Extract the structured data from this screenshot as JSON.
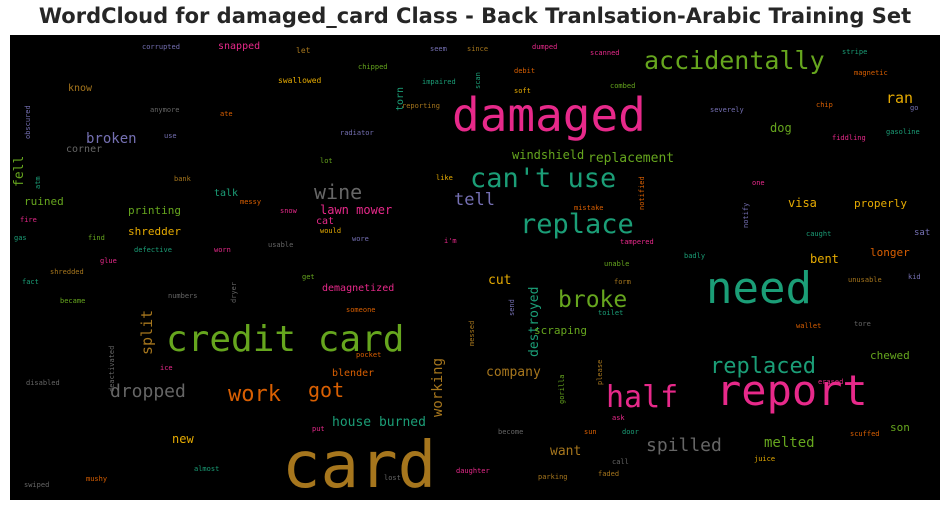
{
  "chart_data": {
    "type": "wordcloud",
    "title": "WordCloud for damaged_card Class - Back Tranlsation-Arabic Training Set",
    "background": "#000000",
    "palette": {
      "pink": "#e7298a",
      "green": "#1b9e77",
      "lime": "#66a61e",
      "gold": "#a6761d",
      "orange": "#d95f02",
      "yellow": "#e6ab02",
      "purple": "#7570b3",
      "gray": "#666666"
    },
    "words": [
      {
        "text": "card",
        "color": "gold",
        "weight": 64
      },
      {
        "text": "need",
        "color": "green",
        "weight": 44
      },
      {
        "text": "damaged",
        "color": "pink",
        "weight": 46
      },
      {
        "text": "report",
        "color": "pink",
        "weight": 42
      },
      {
        "text": "credit card",
        "color": "lime",
        "weight": 36
      },
      {
        "text": "half",
        "color": "pink",
        "weight": 30
      },
      {
        "text": "can't use",
        "color": "green",
        "weight": 27
      },
      {
        "text": "replace",
        "color": "green",
        "weight": 27
      },
      {
        "text": "accidentally",
        "color": "lime",
        "weight": 25
      },
      {
        "text": "broke",
        "color": "lime",
        "weight": 23
      },
      {
        "text": "replaced",
        "color": "green",
        "weight": 22
      },
      {
        "text": "work",
        "color": "orange",
        "weight": 22
      },
      {
        "text": "wine",
        "color": "gray",
        "weight": 20
      },
      {
        "text": "got",
        "color": "orange",
        "weight": 20
      },
      {
        "text": "dropped",
        "color": "gray",
        "weight": 18
      },
      {
        "text": "spilled",
        "color": "gray",
        "weight": 18
      },
      {
        "text": "tell",
        "color": "purple",
        "weight": 17
      },
      {
        "text": "ran",
        "color": "yellow",
        "weight": 15
      },
      {
        "text": "split",
        "color": "gold",
        "weight": 15
      },
      {
        "text": "working",
        "color": "gold",
        "weight": 14
      },
      {
        "text": "melted",
        "color": "lime",
        "weight": 14
      },
      {
        "text": "broken",
        "color": "purple",
        "weight": 14
      },
      {
        "text": "destroyed",
        "color": "green",
        "weight": 13
      },
      {
        "text": "house burned",
        "color": "green",
        "weight": 13
      },
      {
        "text": "cut",
        "color": "yellow",
        "weight": 13
      },
      {
        "text": "fell",
        "color": "lime",
        "weight": 13
      },
      {
        "text": "want",
        "color": "gold",
        "weight": 13
      },
      {
        "text": "company",
        "color": "gold",
        "weight": 13
      },
      {
        "text": "replacement",
        "color": "lime",
        "weight": 13
      },
      {
        "text": "windshield",
        "color": "lime",
        "weight": 12
      },
      {
        "text": "new",
        "color": "yellow",
        "weight": 12
      },
      {
        "text": "visa",
        "color": "yellow",
        "weight": 12
      },
      {
        "text": "dog",
        "color": "lime",
        "weight": 12
      },
      {
        "text": "lawn mower",
        "color": "pink",
        "weight": 12
      },
      {
        "text": "bent",
        "color": "yellow",
        "weight": 12
      },
      {
        "text": "longer",
        "color": "orange",
        "weight": 11
      },
      {
        "text": "chewed",
        "color": "lime",
        "weight": 11
      },
      {
        "text": "son",
        "color": "lime",
        "weight": 11
      },
      {
        "text": "properly",
        "color": "yellow",
        "weight": 11
      },
      {
        "text": "scraping",
        "color": "lime",
        "weight": 11
      },
      {
        "text": "ruined",
        "color": "lime",
        "weight": 11
      },
      {
        "text": "printing",
        "color": "lime",
        "weight": 11
      },
      {
        "text": "shredder",
        "color": "yellow",
        "weight": 11
      },
      {
        "text": "demagnetized",
        "color": "pink",
        "weight": 10
      },
      {
        "text": "blender",
        "color": "orange",
        "weight": 10
      },
      {
        "text": "snapped",
        "color": "pink",
        "weight": 10
      },
      {
        "text": "cat",
        "color": "pink",
        "weight": 10
      },
      {
        "text": "talk",
        "color": "green",
        "weight": 10
      },
      {
        "text": "corner",
        "color": "gray",
        "weight": 10
      },
      {
        "text": "know",
        "color": "gold",
        "weight": 10
      },
      {
        "text": "torn",
        "color": "green",
        "weight": 10
      },
      {
        "text": "sat",
        "color": "purple",
        "weight": 9
      },
      {
        "text": "swallowed",
        "color": "yellow",
        "weight": 8
      },
      {
        "text": "let",
        "color": "gold",
        "weight": 8
      },
      {
        "text": "corrupted",
        "color": "purple",
        "weight": 7
      },
      {
        "text": "chipped",
        "color": "lime",
        "weight": 7
      },
      {
        "text": "impaired",
        "color": "green",
        "weight": 7
      },
      {
        "text": "scan",
        "color": "green",
        "weight": 7
      },
      {
        "text": "soft",
        "color": "yellow",
        "weight": 7
      },
      {
        "text": "seem",
        "color": "purple",
        "weight": 7
      },
      {
        "text": "since",
        "color": "gold",
        "weight": 7
      },
      {
        "text": "dumped",
        "color": "pink",
        "weight": 7
      },
      {
        "text": "scanned",
        "color": "pink",
        "weight": 7
      },
      {
        "text": "stripe",
        "color": "green",
        "weight": 7
      },
      {
        "text": "debit",
        "color": "orange",
        "weight": 7
      },
      {
        "text": "combed",
        "color": "lime",
        "weight": 7
      },
      {
        "text": "magnetic",
        "color": "orange",
        "weight": 7
      },
      {
        "text": "reporting",
        "color": "gold",
        "weight": 7
      },
      {
        "text": "chip",
        "color": "orange",
        "weight": 7
      },
      {
        "text": "severely",
        "color": "purple",
        "weight": 7
      },
      {
        "text": "go",
        "color": "purple",
        "weight": 7
      },
      {
        "text": "gasoline",
        "color": "green",
        "weight": 7
      },
      {
        "text": "fiddling",
        "color": "pink",
        "weight": 7
      },
      {
        "text": "obscured",
        "color": "purple",
        "weight": 7
      },
      {
        "text": "anymore",
        "color": "gray",
        "weight": 7
      },
      {
        "text": "ate",
        "color": "orange",
        "weight": 7
      },
      {
        "text": "use",
        "color": "purple",
        "weight": 7
      },
      {
        "text": "radiator",
        "color": "purple",
        "weight": 7
      },
      {
        "text": "lot",
        "color": "lime",
        "weight": 7
      },
      {
        "text": "atm",
        "color": "green",
        "weight": 7
      },
      {
        "text": "bank",
        "color": "gold",
        "weight": 7
      },
      {
        "text": "like",
        "color": "yellow",
        "weight": 7
      },
      {
        "text": "mistake",
        "color": "orange",
        "weight": 7
      },
      {
        "text": "notified",
        "color": "orange",
        "weight": 7
      },
      {
        "text": "one",
        "color": "pink",
        "weight": 7
      },
      {
        "text": "notify",
        "color": "purple",
        "weight": 7
      },
      {
        "text": "messy",
        "color": "orange",
        "weight": 7
      },
      {
        "text": "snow",
        "color": "pink",
        "weight": 7
      },
      {
        "text": "fire",
        "color": "pink",
        "weight": 7
      },
      {
        "text": "gas",
        "color": "green",
        "weight": 7
      },
      {
        "text": "find",
        "color": "lime",
        "weight": 7
      },
      {
        "text": "defective",
        "color": "green",
        "weight": 7
      },
      {
        "text": "worn",
        "color": "pink",
        "weight": 7
      },
      {
        "text": "usable",
        "color": "gray",
        "weight": 7
      },
      {
        "text": "would",
        "color": "yellow",
        "weight": 7
      },
      {
        "text": "wore",
        "color": "purple",
        "weight": 7
      },
      {
        "text": "i'm",
        "color": "pink",
        "weight": 7
      },
      {
        "text": "tampered",
        "color": "pink",
        "weight": 7
      },
      {
        "text": "caught",
        "color": "green",
        "weight": 7
      },
      {
        "text": "glue",
        "color": "pink",
        "weight": 7
      },
      {
        "text": "badly",
        "color": "green",
        "weight": 7
      },
      {
        "text": "unable",
        "color": "lime",
        "weight": 7
      },
      {
        "text": "kid",
        "color": "purple",
        "weight": 7
      },
      {
        "text": "fact",
        "color": "green",
        "weight": 7
      },
      {
        "text": "shredded",
        "color": "gold",
        "weight": 7
      },
      {
        "text": "dryer",
        "color": "gray",
        "weight": 7
      },
      {
        "text": "get",
        "color": "lime",
        "weight": 7
      },
      {
        "text": "form",
        "color": "gold",
        "weight": 7
      },
      {
        "text": "unusable",
        "color": "gold",
        "weight": 7
      },
      {
        "text": "became",
        "color": "lime",
        "weight": 7
      },
      {
        "text": "numbers",
        "color": "gray",
        "weight": 7
      },
      {
        "text": "someone",
        "color": "orange",
        "weight": 7
      },
      {
        "text": "send",
        "color": "purple",
        "weight": 7
      },
      {
        "text": "toilet",
        "color": "green",
        "weight": 7
      },
      {
        "text": "tore",
        "color": "gray",
        "weight": 7
      },
      {
        "text": "wallet",
        "color": "orange",
        "weight": 7
      },
      {
        "text": "deactivated",
        "color": "gray",
        "weight": 7
      },
      {
        "text": "pocket",
        "color": "orange",
        "weight": 7
      },
      {
        "text": "messed",
        "color": "gold",
        "weight": 7
      },
      {
        "text": "please",
        "color": "gold",
        "weight": 7
      },
      {
        "text": "ice",
        "color": "pink",
        "weight": 7
      },
      {
        "text": "disabled",
        "color": "gray",
        "weight": 7
      },
      {
        "text": "gorilla",
        "color": "lime",
        "weight": 7
      },
      {
        "text": "ask",
        "color": "pink",
        "weight": 7
      },
      {
        "text": "erased",
        "color": "pink",
        "weight": 7
      },
      {
        "text": "put",
        "color": "pink",
        "weight": 7
      },
      {
        "text": "become",
        "color": "gray",
        "weight": 7
      },
      {
        "text": "sun",
        "color": "orange",
        "weight": 7
      },
      {
        "text": "door",
        "color": "green",
        "weight": 7
      },
      {
        "text": "scuffed",
        "color": "orange",
        "weight": 7
      },
      {
        "text": "almost",
        "color": "green",
        "weight": 7
      },
      {
        "text": "call",
        "color": "gray",
        "weight": 7
      },
      {
        "text": "juice",
        "color": "yellow",
        "weight": 7
      },
      {
        "text": "mushy",
        "color": "orange",
        "weight": 7
      },
      {
        "text": "daughter",
        "color": "pink",
        "weight": 7
      },
      {
        "text": "faded",
        "color": "gold",
        "weight": 7
      },
      {
        "text": "swiped",
        "color": "gray",
        "weight": 7
      },
      {
        "text": "lost",
        "color": "gray",
        "weight": 7
      },
      {
        "text": "parking",
        "color": "gold",
        "weight": 7
      }
    ]
  }
}
